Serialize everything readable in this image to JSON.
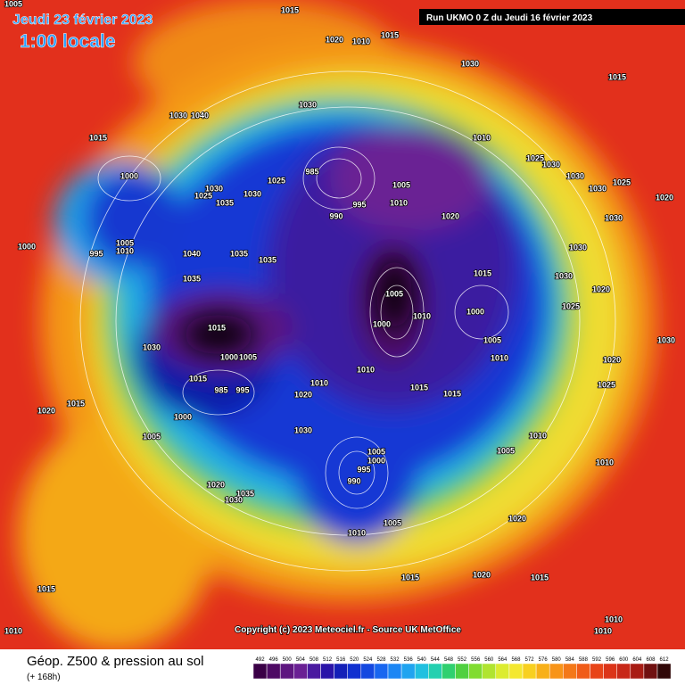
{
  "header": {
    "date": "Jeudi 23 février 2023",
    "time": "1:00 locale",
    "run": "Run UKMO 0 Z du Jeudi 16 février 2023"
  },
  "copyright": "Copyright (c) 2023 Meteociel.fr - Source UK MetOffice",
  "legend": {
    "title": "Géop. Z500 & pression au sol",
    "lead": "(+ 168h)"
  },
  "colorbar": {
    "ticks": [
      492,
      496,
      500,
      504,
      508,
      512,
      516,
      520,
      524,
      528,
      532,
      536,
      540,
      544,
      548,
      552,
      556,
      560,
      564,
      568,
      572,
      576,
      580,
      584,
      588,
      592,
      596,
      600,
      604,
      608,
      612
    ],
    "colors": [
      "#3a0046",
      "#4e0a64",
      "#5e1680",
      "#6a2094",
      "#4a1aa0",
      "#2a14a8",
      "#1420b8",
      "#1030d0",
      "#1448e0",
      "#1866f0",
      "#1c86f4",
      "#20a4f0",
      "#20c0e0",
      "#24d0b0",
      "#30d070",
      "#50d040",
      "#80dc30",
      "#b0e430",
      "#dcec30",
      "#f4e830",
      "#f8d020",
      "#f8b018",
      "#f89418",
      "#f47818",
      "#f05c18",
      "#e84418",
      "#dc3418",
      "#c82818",
      "#a81c14",
      "#701010",
      "#300808"
    ]
  },
  "isobar_labels": [
    1005,
    1015,
    1020,
    1010,
    1015,
    1030,
    1015,
    1030,
    1040,
    1030,
    1015,
    1010,
    1025,
    1030,
    1030,
    1030,
    1025,
    1020,
    1000,
    985,
    1005,
    1030,
    1030,
    1025,
    990,
    995,
    1010,
    1025,
    1035,
    1020,
    1030,
    1000,
    1005,
    1010,
    995,
    1040,
    1035,
    1035,
    1030,
    1015,
    1030,
    1020,
    1035,
    1005,
    1025,
    1000,
    1010,
    1000,
    1015,
    1030,
    1005,
    1030,
    1005,
    1000,
    1010,
    1020,
    1010,
    1015,
    1010,
    1025,
    1015,
    1015,
    1020,
    985,
    995,
    1020,
    1015,
    1000,
    1030,
    1005,
    1010,
    1005,
    1005,
    1000,
    995,
    990,
    1010,
    1020,
    1035,
    1030,
    1020,
    1005,
    1010,
    1020,
    1015,
    1015,
    1015,
    1010,
    1010,
    1010
  ]
}
